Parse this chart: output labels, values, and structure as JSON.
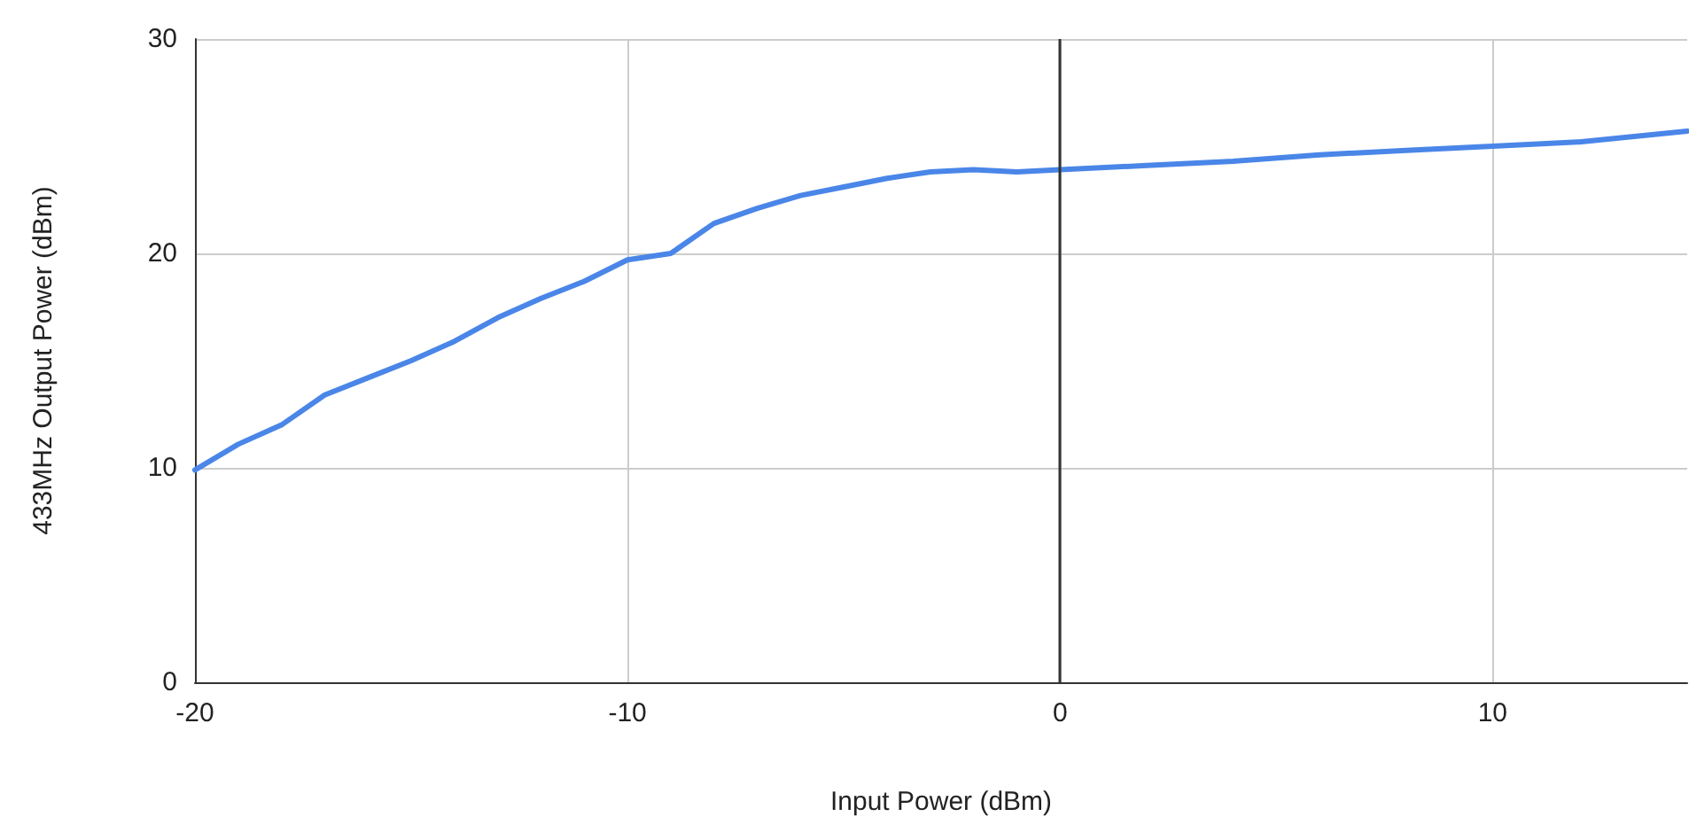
{
  "chart_data": {
    "type": "line",
    "xlabel": "Input Power (dBm)",
    "ylabel": "433MHz Output Power (dBm)",
    "x": [
      -20,
      -19,
      -18,
      -17,
      -16,
      -15,
      -14,
      -13,
      -12,
      -11,
      -10,
      -9,
      -8,
      -7,
      -6,
      -5,
      -4,
      -3,
      -2,
      -1,
      0,
      2,
      4,
      6,
      8,
      10,
      12,
      14.5
    ],
    "series": [
      {
        "color": "#4a86e8",
        "values": [
          9.9,
          11.1,
          12.0,
          13.4,
          14.2,
          15.0,
          15.9,
          17.0,
          17.9,
          18.7,
          19.7,
          20.0,
          21.4,
          22.1,
          22.7,
          23.1,
          23.5,
          23.8,
          23.9,
          23.8,
          23.9,
          24.1,
          24.3,
          24.6,
          24.8,
          25.0,
          25.2,
          25.7
        ]
      }
    ],
    "xlim": [
      -20,
      14.5
    ],
    "xticks": [
      -20,
      -10,
      0,
      10
    ],
    "ylim": [
      0,
      30
    ],
    "yticks": [
      0,
      10,
      20,
      30
    ],
    "grid": true,
    "marker": "none",
    "line_style": "solid",
    "ref_lines": [
      {
        "axis": "x",
        "value": 0,
        "color": "#333333"
      }
    ]
  }
}
